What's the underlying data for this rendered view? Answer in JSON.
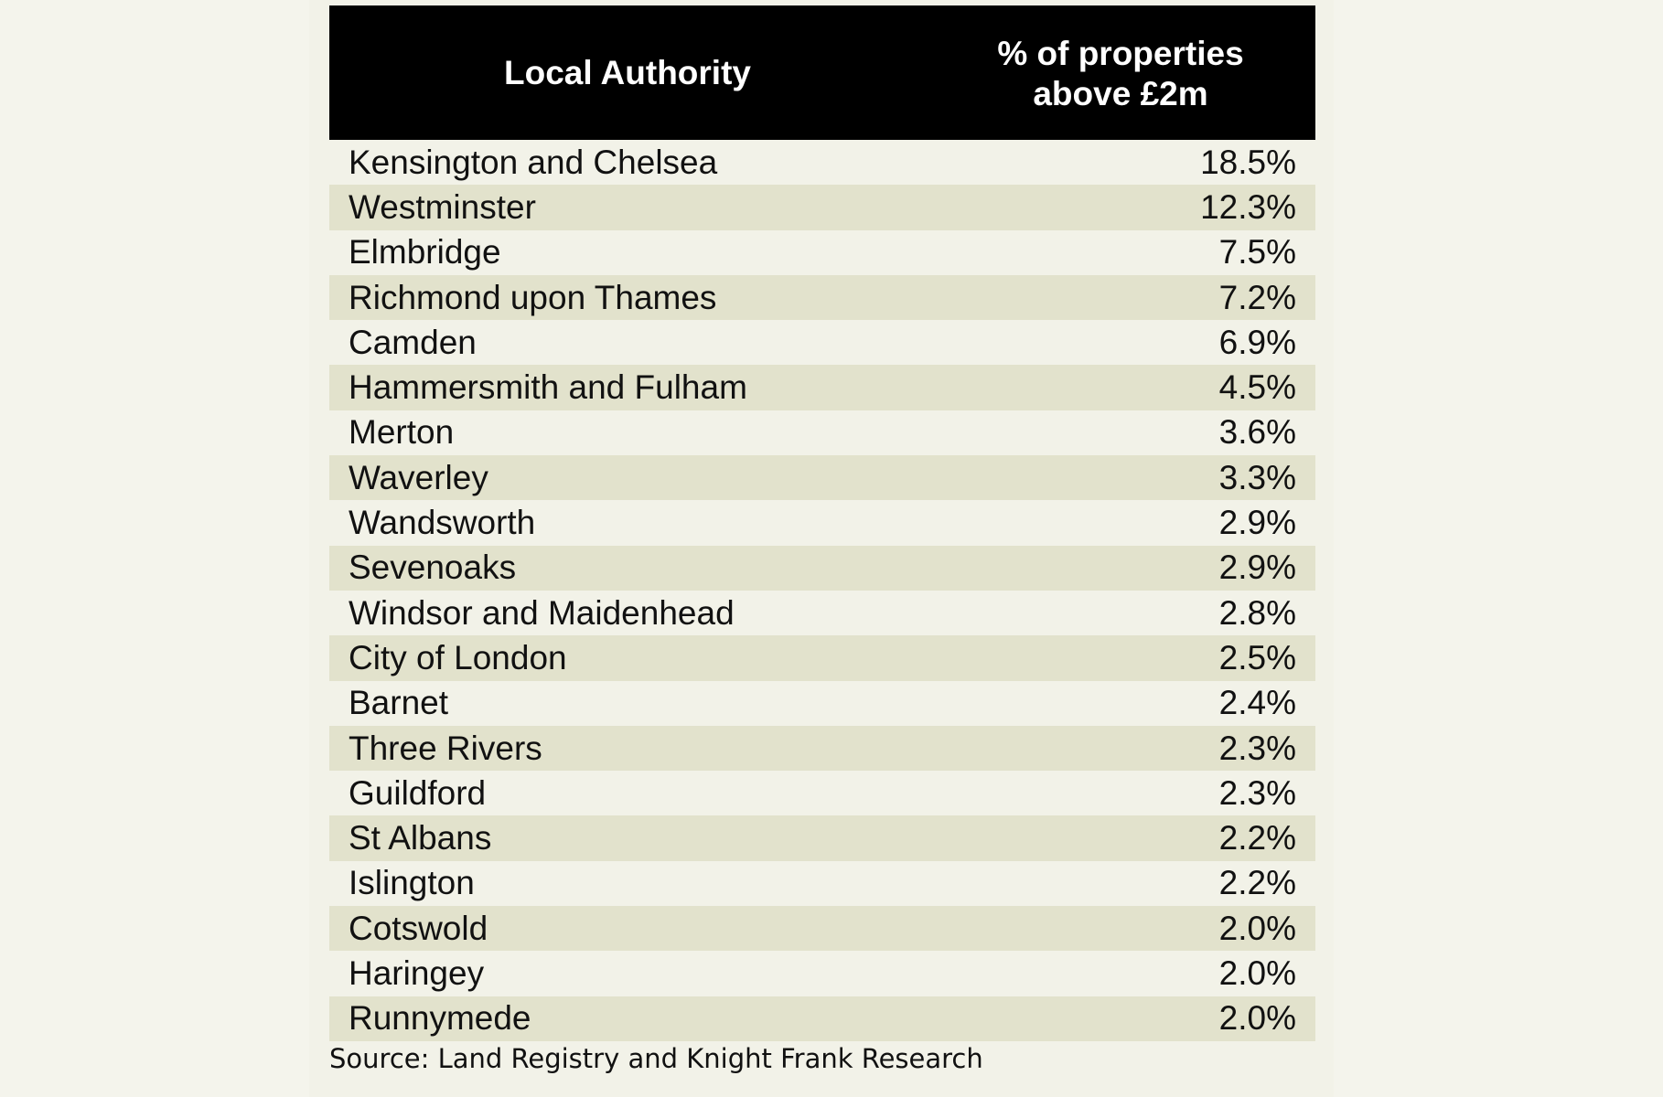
{
  "table": {
    "headers": {
      "authority": "Local Authority",
      "percent": "% of properties\nabove £2m"
    },
    "rows": [
      {
        "authority": "Kensington and Chelsea",
        "percent": "18.5%"
      },
      {
        "authority": "Westminster",
        "percent": "12.3%"
      },
      {
        "authority": "Elmbridge",
        "percent": "7.5%"
      },
      {
        "authority": "Richmond upon Thames",
        "percent": "7.2%"
      },
      {
        "authority": "Camden",
        "percent": "6.9%"
      },
      {
        "authority": "Hammersmith and Fulham",
        "percent": "4.5%"
      },
      {
        "authority": "Merton",
        "percent": "3.6%"
      },
      {
        "authority": "Waverley",
        "percent": "3.3%"
      },
      {
        "authority": "Wandsworth",
        "percent": "2.9%"
      },
      {
        "authority": "Sevenoaks",
        "percent": "2.9%"
      },
      {
        "authority": "Windsor and Maidenhead",
        "percent": "2.8%"
      },
      {
        "authority": "City of London",
        "percent": "2.5%"
      },
      {
        "authority": "Barnet",
        "percent": "2.4%"
      },
      {
        "authority": "Three Rivers",
        "percent": "2.3%"
      },
      {
        "authority": "Guildford",
        "percent": "2.3%"
      },
      {
        "authority": "St Albans",
        "percent": "2.2%"
      },
      {
        "authority": "Islington",
        "percent": "2.2%"
      },
      {
        "authority": "Cotswold",
        "percent": "2.0%"
      },
      {
        "authority": "Haringey",
        "percent": "2.0%"
      },
      {
        "authority": "Runnymede",
        "percent": "2.0%"
      }
    ]
  },
  "source": "Source: Land Registry and Knight Frank Research",
  "colors": {
    "header_bg": "#000000",
    "header_text": "#ffffff",
    "row_shade": "#e2e2cc",
    "row_plain": "#f2f2e8"
  }
}
